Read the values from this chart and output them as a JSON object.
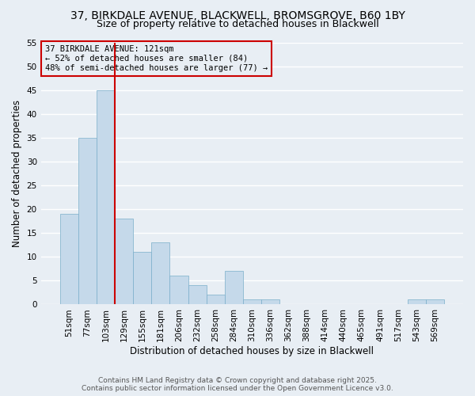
{
  "title_line1": "37, BIRKDALE AVENUE, BLACKWELL, BROMSGROVE, B60 1BY",
  "title_line2": "Size of property relative to detached houses in Blackwell",
  "xlabel": "Distribution of detached houses by size in Blackwell",
  "ylabel": "Number of detached properties",
  "categories": [
    "51sqm",
    "77sqm",
    "103sqm",
    "129sqm",
    "155sqm",
    "181sqm",
    "206sqm",
    "232sqm",
    "258sqm",
    "284sqm",
    "310sqm",
    "336sqm",
    "362sqm",
    "388sqm",
    "414sqm",
    "440sqm",
    "465sqm",
    "491sqm",
    "517sqm",
    "543sqm",
    "569sqm"
  ],
  "values": [
    19,
    35,
    45,
    18,
    11,
    13,
    6,
    4,
    2,
    7,
    1,
    1,
    0,
    0,
    0,
    0,
    0,
    0,
    0,
    1,
    1
  ],
  "bar_color": "#c5d9ea",
  "bar_edgecolor": "#7aaeca",
  "vline_x": 2.5,
  "vline_color": "#cc0000",
  "annotation_text": "37 BIRKDALE AVENUE: 121sqm\n← 52% of detached houses are smaller (84)\n48% of semi-detached houses are larger (77) →",
  "annotation_box_edgecolor": "#cc0000",
  "ylim": [
    0,
    55
  ],
  "yticks": [
    0,
    5,
    10,
    15,
    20,
    25,
    30,
    35,
    40,
    45,
    50,
    55
  ],
  "footnote_line1": "Contains HM Land Registry data © Crown copyright and database right 2025.",
  "footnote_line2": "Contains public sector information licensed under the Open Government Licence v3.0.",
  "background_color": "#e8eef4",
  "grid_color": "#ffffff",
  "title_fontsize": 10,
  "subtitle_fontsize": 9,
  "axis_label_fontsize": 8.5,
  "tick_fontsize": 7.5,
  "annotation_fontsize": 7.5,
  "footnote_fontsize": 6.5
}
